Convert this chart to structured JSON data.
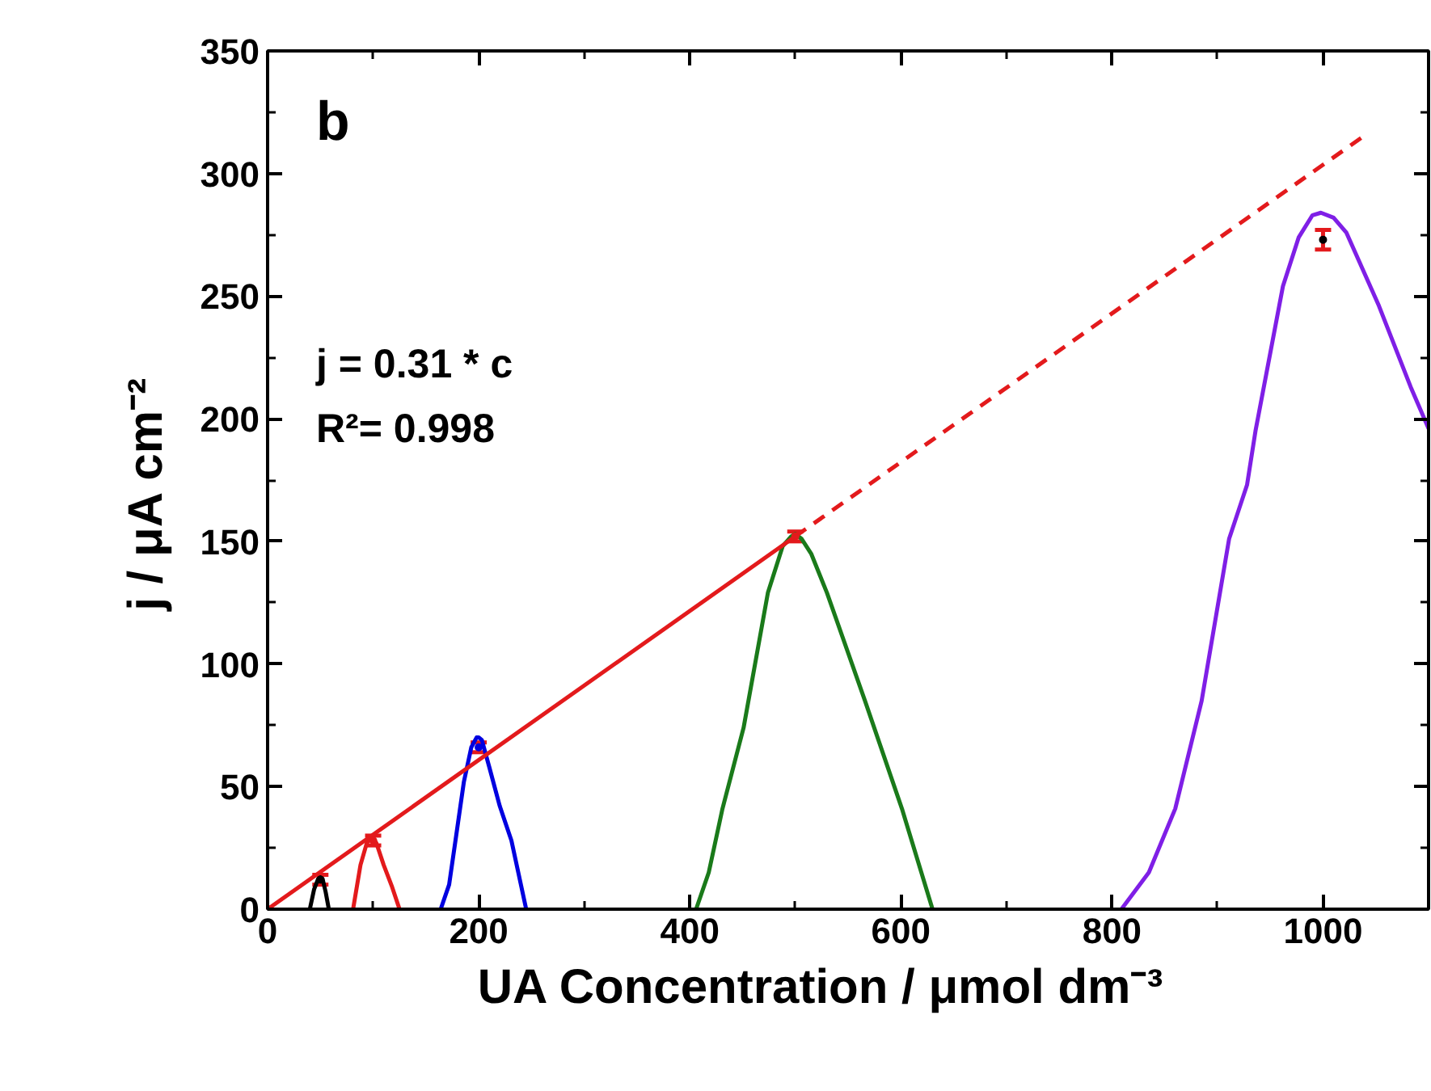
{
  "chart_data": {
    "type": "line",
    "xlabel": "UA Concentration   /   μmol dm⁻³",
    "ylabel": "j  /  μA cm⁻²",
    "xlim": [
      0,
      1100
    ],
    "ylim": [
      0,
      350
    ],
    "xticks": [
      0,
      200,
      400,
      600,
      800,
      1000
    ],
    "yticks": [
      0,
      50,
      100,
      150,
      200,
      250,
      300,
      350
    ],
    "grid": false,
    "line_style": "solid",
    "annotations": [
      "b",
      "j = 0.31 * c",
      "R²= 0.998"
    ],
    "series": [
      {
        "color": "#000000",
        "x": [
          40,
          44,
          48,
          50,
          52,
          55,
          58
        ],
        "values": [
          0,
          8,
          12.5,
          13,
          12.5,
          7,
          0
        ]
      },
      {
        "color": "#e31a1c",
        "x": [
          81,
          88,
          94,
          98,
          100,
          103,
          110,
          118,
          125
        ],
        "values": [
          0,
          18,
          27,
          29,
          29,
          27,
          18,
          9,
          0
        ]
      },
      {
        "color": "#0000e0",
        "x": [
          164,
          172,
          178,
          186,
          193,
          198,
          200,
          203,
          210,
          220,
          231,
          245
        ],
        "values": [
          0,
          10,
          28,
          52,
          66,
          70,
          70,
          69,
          58,
          42,
          28,
          0
        ]
      },
      {
        "color": "#1a7a1a",
        "x": [
          406,
          418,
          431,
          451,
          474,
          488,
          496,
          500,
          506,
          515,
          530,
          566,
          601,
          630
        ],
        "values": [
          0,
          15,
          41,
          74,
          129,
          148,
          152,
          153,
          151,
          145,
          129,
          85,
          41,
          0
        ]
      },
      {
        "color": "#7f1fe6",
        "x": [
          809,
          835,
          860,
          885,
          911,
          928,
          936,
          962,
          977,
          990,
          998,
          1010,
          1022,
          1053,
          1083,
          1100
        ],
        "values": [
          0,
          15,
          41,
          85,
          151,
          173,
          195,
          254,
          274,
          283,
          284,
          282,
          276,
          246,
          213,
          196
        ]
      },
      {
        "color": "#e31a1c",
        "x": [
          0,
          500
        ],
        "values": [
          0,
          152
        ]
      },
      {
        "color": "#e31a1c",
        "line_style": "dashed",
        "x": [
          500,
          1041
        ],
        "values": [
          152,
          316
        ]
      },
      {
        "type": "scatter",
        "color": "#e31a1c",
        "x": [
          50,
          100,
          200,
          500,
          1000
        ],
        "values": [
          12,
          28,
          66,
          152,
          273
        ],
        "colors": [
          "#000000",
          "#e31a1c",
          "#0000e0",
          "#e31a1c",
          "#000000"
        ],
        "errors": [
          2,
          2,
          2,
          2,
          4
        ]
      }
    ]
  }
}
